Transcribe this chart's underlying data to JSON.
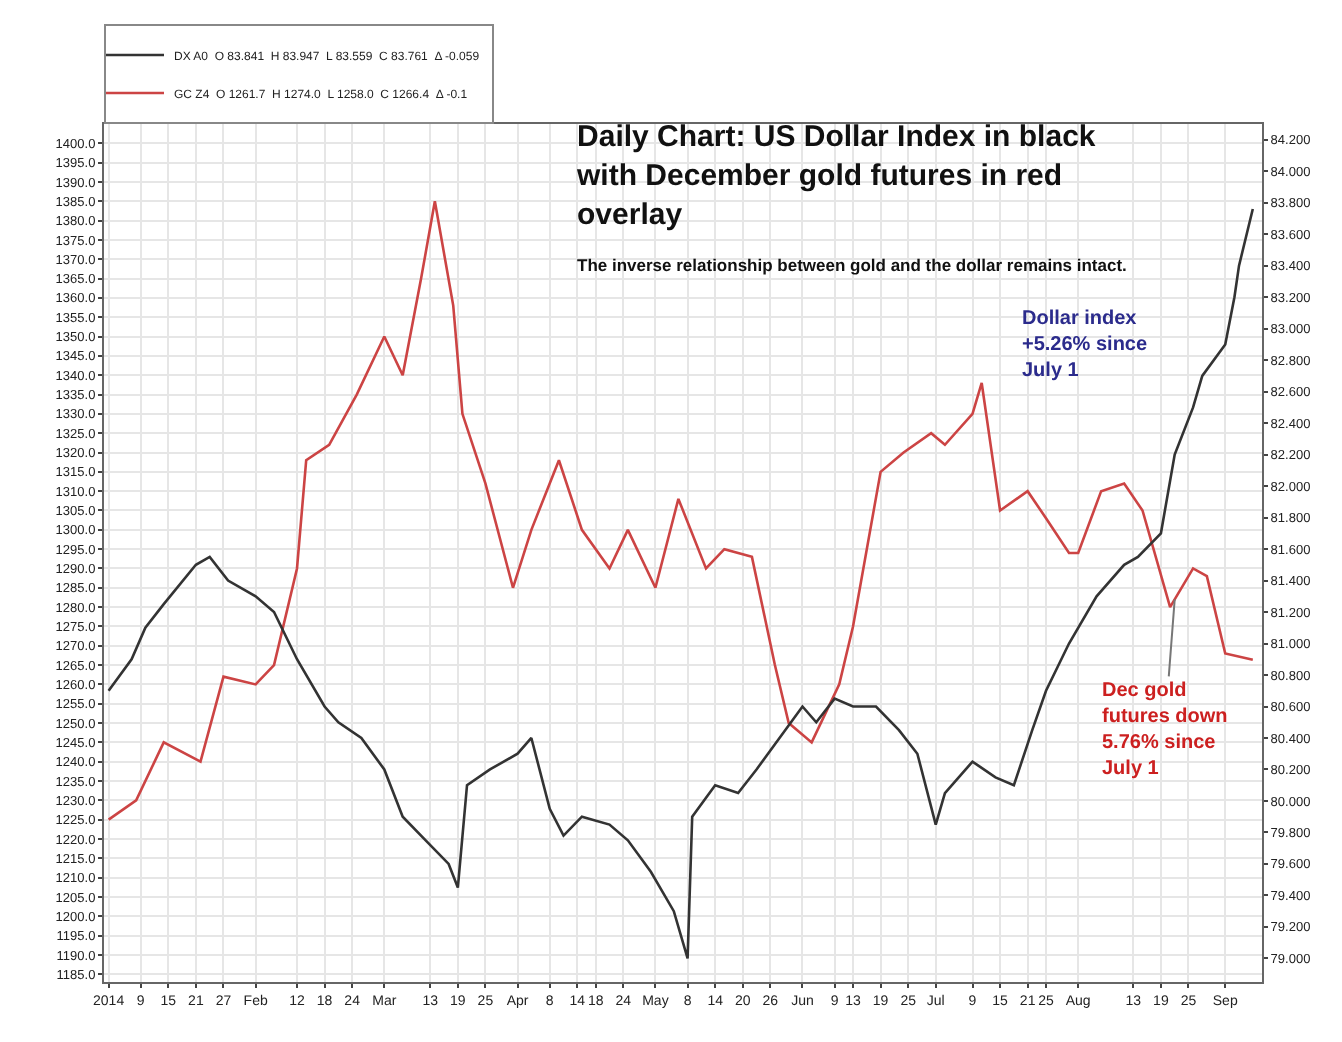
{
  "chart_data": {
    "type": "line",
    "title": "Daily Chart: US Dollar Index in black with December gold futures in red overlay",
    "subtitle": "The inverse relationship between gold and the dollar remains intact.",
    "legend": "top left",
    "grid": true,
    "series": [
      {
        "name": "DX A0  O 83.841  H 83.947  L 83.559  C 83.761  Δ -0.059",
        "color": "#333333",
        "axis": "y2",
        "x": [
          "2014-01-02",
          "2014-01-07",
          "2014-01-10",
          "2014-01-14",
          "2014-01-21",
          "2014-01-24",
          "2014-01-28",
          "2014-02-03",
          "2014-02-07",
          "2014-02-12",
          "2014-02-18",
          "2014-02-21",
          "2014-02-26",
          "2014-03-03",
          "2014-03-07",
          "2014-03-12",
          "2014-03-17",
          "2014-03-19",
          "2014-03-21",
          "2014-03-26",
          "2014-04-01",
          "2014-04-04",
          "2014-04-08",
          "2014-04-11",
          "2014-04-15",
          "2014-04-21",
          "2014-04-25",
          "2014-04-30",
          "2014-05-05",
          "2014-05-08",
          "2014-05-09",
          "2014-05-14",
          "2014-05-19",
          "2014-05-23",
          "2014-05-28",
          "2014-06-02",
          "2014-06-05",
          "2014-06-09",
          "2014-06-13",
          "2014-06-18",
          "2014-06-23",
          "2014-06-27",
          "2014-07-01",
          "2014-07-03",
          "2014-07-09",
          "2014-07-14",
          "2014-07-18",
          "2014-07-22",
          "2014-07-25",
          "2014-07-30",
          "2014-08-05",
          "2014-08-11",
          "2014-08-14",
          "2014-08-19",
          "2014-08-22",
          "2014-08-26",
          "2014-08-28",
          "2014-09-02",
          "2014-09-04",
          "2014-09-05",
          "2014-09-08"
        ],
        "values": [
          80.7,
          80.9,
          81.1,
          81.25,
          81.5,
          81.55,
          81.4,
          81.3,
          81.2,
          80.9,
          80.6,
          80.5,
          80.4,
          80.2,
          79.9,
          79.75,
          79.6,
          79.45,
          80.1,
          80.2,
          80.3,
          80.4,
          79.95,
          79.78,
          79.9,
          79.85,
          79.75,
          79.55,
          79.3,
          79.0,
          79.9,
          80.1,
          80.05,
          80.2,
          80.4,
          80.6,
          80.5,
          80.65,
          80.6,
          80.6,
          80.45,
          80.3,
          79.85,
          80.05,
          80.25,
          80.15,
          80.1,
          80.45,
          80.7,
          81.0,
          81.3,
          81.5,
          81.55,
          81.7,
          82.2,
          82.5,
          82.7,
          82.9,
          83.2,
          83.4,
          83.76
        ]
      },
      {
        "name": "GC Z4  O 1261.7  H 1274.0  L 1258.0  C 1266.4  Δ -0.1",
        "color": "#cc4444",
        "x": [
          "2014-01-02",
          "2014-01-08",
          "2014-01-14",
          "2014-01-22",
          "2014-01-27",
          "2014-02-03",
          "2014-02-07",
          "2014-02-12",
          "2014-02-14",
          "2014-02-19",
          "2014-02-25",
          "2014-03-03",
          "2014-03-07",
          "2014-03-11",
          "2014-03-14",
          "2014-03-18",
          "2014-03-20",
          "2014-03-25",
          "2014-03-31",
          "2014-04-04",
          "2014-04-10",
          "2014-04-15",
          "2014-04-21",
          "2014-04-25",
          "2014-05-01",
          "2014-05-06",
          "2014-05-12",
          "2014-05-16",
          "2014-05-22",
          "2014-05-27",
          "2014-05-30",
          "2014-06-04",
          "2014-06-10",
          "2014-06-13",
          "2014-06-19",
          "2014-06-24",
          "2014-06-30",
          "2014-07-03",
          "2014-07-09",
          "2014-07-11",
          "2014-07-15",
          "2014-07-21",
          "2014-07-25",
          "2014-07-30",
          "2014-08-01",
          "2014-08-06",
          "2014-08-11",
          "2014-08-15",
          "2014-08-21",
          "2014-08-26",
          "2014-08-29",
          "2014-09-02",
          "2014-09-08"
        ],
        "values": [
          1225,
          1230,
          1245,
          1240,
          1262,
          1260,
          1265,
          1290,
          1318,
          1322,
          1335,
          1350,
          1340,
          1365,
          1385,
          1358,
          1330,
          1312,
          1285,
          1300,
          1318,
          1300,
          1290,
          1300,
          1285,
          1308,
          1290,
          1295,
          1293,
          1265,
          1250,
          1245,
          1260,
          1275,
          1315,
          1320,
          1325,
          1322,
          1330,
          1338,
          1305,
          1310,
          1303,
          1294,
          1294,
          1310,
          1312,
          1305,
          1280,
          1290,
          1288,
          1268,
          1266.4
        ]
      }
    ],
    "xlim": [
      "2014-01-01",
      "2014-09-10"
    ],
    "xticks": [
      {
        "value": "2014-01-02",
        "label": "2014"
      },
      {
        "value": "2014-01-09",
        "label": "9"
      },
      {
        "value": "2014-01-15",
        "label": "15"
      },
      {
        "value": "2014-01-21",
        "label": "21"
      },
      {
        "value": "2014-01-27",
        "label": "27"
      },
      {
        "value": "2014-02-03",
        "label": "Feb"
      },
      {
        "value": "2014-02-12",
        "label": "12"
      },
      {
        "value": "2014-02-18",
        "label": "18"
      },
      {
        "value": "2014-02-24",
        "label": "24"
      },
      {
        "value": "2014-03-03",
        "label": "Mar"
      },
      {
        "value": "2014-03-13",
        "label": "13"
      },
      {
        "value": "2014-03-19",
        "label": "19"
      },
      {
        "value": "2014-03-25",
        "label": "25"
      },
      {
        "value": "2014-04-01",
        "label": "Apr"
      },
      {
        "value": "2014-04-08",
        "label": "8"
      },
      {
        "value": "2014-04-14",
        "label": "14"
      },
      {
        "value": "2014-04-18",
        "label": "18"
      },
      {
        "value": "2014-04-24",
        "label": "24"
      },
      {
        "value": "2014-05-01",
        "label": "May"
      },
      {
        "value": "2014-05-08",
        "label": "8"
      },
      {
        "value": "2014-05-14",
        "label": "14"
      },
      {
        "value": "2014-05-20",
        "label": "20"
      },
      {
        "value": "2014-05-26",
        "label": "26"
      },
      {
        "value": "2014-06-02",
        "label": "Jun"
      },
      {
        "value": "2014-06-09",
        "label": "9"
      },
      {
        "value": "2014-06-13",
        "label": "13"
      },
      {
        "value": "2014-06-19",
        "label": "19"
      },
      {
        "value": "2014-06-25",
        "label": "25"
      },
      {
        "value": "2014-07-01",
        "label": "Jul"
      },
      {
        "value": "2014-07-09",
        "label": "9"
      },
      {
        "value": "2014-07-15",
        "label": "15"
      },
      {
        "value": "2014-07-21",
        "label": "21"
      },
      {
        "value": "2014-07-25",
        "label": "25"
      },
      {
        "value": "2014-08-01",
        "label": "Aug"
      },
      {
        "value": "2014-08-13",
        "label": "13"
      },
      {
        "value": "2014-08-19",
        "label": "19"
      },
      {
        "value": "2014-08-25",
        "label": "25"
      },
      {
        "value": "2014-09-02",
        "label": "Sep"
      }
    ],
    "ylim": [
      1183,
      1405
    ],
    "yticks": [
      {
        "value": 1185,
        "label": "1185.0"
      },
      {
        "value": 1190,
        "label": "1190.0"
      },
      {
        "value": 1195,
        "label": "1195.0"
      },
      {
        "value": 1200,
        "label": "1200.0"
      },
      {
        "value": 1205,
        "label": "1205.0"
      },
      {
        "value": 1210,
        "label": "1210.0"
      },
      {
        "value": 1215,
        "label": "1215.0"
      },
      {
        "value": 1220,
        "label": "1220.0"
      },
      {
        "value": 1225,
        "label": "1225.0"
      },
      {
        "value": 1230,
        "label": "1230.0"
      },
      {
        "value": 1235,
        "label": "1235.0"
      },
      {
        "value": 1240,
        "label": "1240.0"
      },
      {
        "value": 1245,
        "label": "1245.0"
      },
      {
        "value": 1250,
        "label": "1250.0"
      },
      {
        "value": 1255,
        "label": "1255.0"
      },
      {
        "value": 1260,
        "label": "1260.0"
      },
      {
        "value": 1265,
        "label": "1265.0"
      },
      {
        "value": 1270,
        "label": "1270.0"
      },
      {
        "value": 1275,
        "label": "1275.0"
      },
      {
        "value": 1280,
        "label": "1280.0"
      },
      {
        "value": 1285,
        "label": "1285.0"
      },
      {
        "value": 1290,
        "label": "1290.0"
      },
      {
        "value": 1295,
        "label": "1295.0"
      },
      {
        "value": 1300,
        "label": "1300.0"
      },
      {
        "value": 1305,
        "label": "1305.0"
      },
      {
        "value": 1310,
        "label": "1310.0"
      },
      {
        "value": 1315,
        "label": "1315.0"
      },
      {
        "value": 1320,
        "label": "1320.0"
      },
      {
        "value": 1325,
        "label": "1325.0"
      },
      {
        "value": 1330,
        "label": "1330.0"
      },
      {
        "value": 1335,
        "label": "1335.0"
      },
      {
        "value": 1340,
        "label": "1340.0"
      },
      {
        "value": 1345,
        "label": "1345.0"
      },
      {
        "value": 1350,
        "label": "1350.0"
      },
      {
        "value": 1355,
        "label": "1355.0"
      },
      {
        "value": 1360,
        "label": "1360.0"
      },
      {
        "value": 1365,
        "label": "1365.0"
      },
      {
        "value": 1370,
        "label": "1370.0"
      },
      {
        "value": 1375,
        "label": "1375.0"
      },
      {
        "value": 1380,
        "label": "1380.0"
      },
      {
        "value": 1385,
        "label": "1385.0"
      },
      {
        "value": 1390,
        "label": "1390.0"
      },
      {
        "value": 1395,
        "label": "1395.0"
      },
      {
        "value": 1400,
        "label": "1400.0"
      }
    ],
    "y2lim": [
      78.85,
      84.3
    ],
    "y2ticks": [
      {
        "value": 79.0,
        "label": "79.000"
      },
      {
        "value": 79.2,
        "label": "79.200"
      },
      {
        "value": 79.4,
        "label": "79.400"
      },
      {
        "value": 79.6,
        "label": "79.600"
      },
      {
        "value": 79.8,
        "label": "79.800"
      },
      {
        "value": 80.0,
        "label": "80.000"
      },
      {
        "value": 80.2,
        "label": "80.200"
      },
      {
        "value": 80.4,
        "label": "80.400"
      },
      {
        "value": 80.6,
        "label": "80.600"
      },
      {
        "value": 80.8,
        "label": "80.800"
      },
      {
        "value": 81.0,
        "label": "81.000"
      },
      {
        "value": 81.2,
        "label": "81.200"
      },
      {
        "value": 81.4,
        "label": "81.400"
      },
      {
        "value": 81.6,
        "label": "81.600"
      },
      {
        "value": 81.8,
        "label": "81.800"
      },
      {
        "value": 82.0,
        "label": "82.000"
      },
      {
        "value": 82.2,
        "label": "82.200"
      },
      {
        "value": 82.4,
        "label": "82.400"
      },
      {
        "value": 82.6,
        "label": "82.600"
      },
      {
        "value": 82.8,
        "label": "82.800"
      },
      {
        "value": 83.0,
        "label": "83.000"
      },
      {
        "value": 83.2,
        "label": "83.200"
      },
      {
        "value": 83.4,
        "label": "83.400"
      },
      {
        "value": 83.6,
        "label": "83.600"
      },
      {
        "value": 83.8,
        "label": "83.800"
      },
      {
        "value": 84.0,
        "label": "84.000"
      },
      {
        "value": 84.2,
        "label": "84.200"
      }
    ],
    "annotations": [
      "Dollar index +5.26% since July 1",
      {
        "text": "Dec gold futures down 5.76% since July 1",
        "x": "2014-08-22",
        "y": 1282
      }
    ]
  }
}
